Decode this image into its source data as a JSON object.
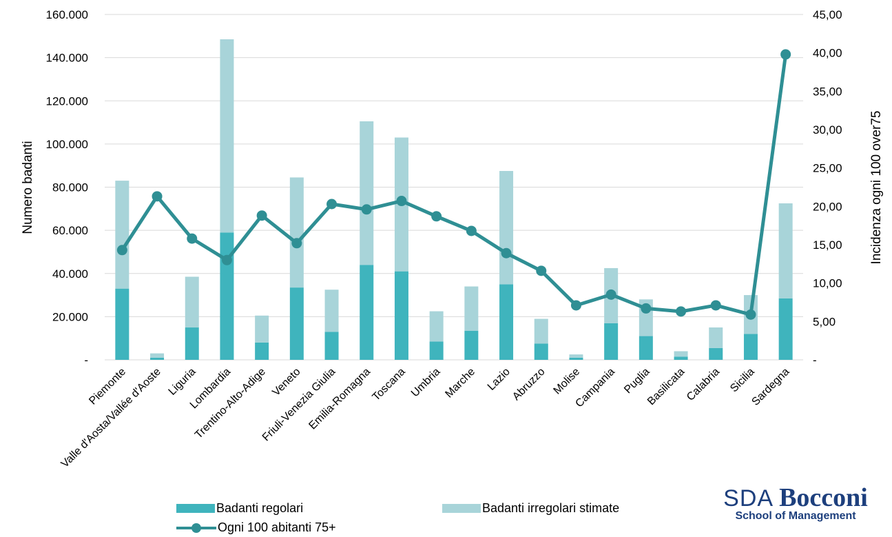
{
  "chart_data": {
    "type": "bar",
    "stacked": true,
    "categories": [
      "Piemonte",
      "Valle d'Aosta/Vallée d'Aoste",
      "Liguria",
      "Lombardia",
      "Trentino-Alto-Adige",
      "Veneto",
      "Friuli-Venezia Giulia",
      "Emilia-Romagna",
      "Toscana",
      "Umbria",
      "Marche",
      "Lazio",
      "Abruzzo",
      "Molise",
      "Campania",
      "Puglia",
      "Basilicata",
      "Calabria",
      "Sicilia",
      "Sardegna"
    ],
    "series": [
      {
        "name": "Badanti regolari",
        "type": "bar",
        "axis": "left",
        "color": "#3fb4bd",
        "values": [
          33000,
          1000,
          15000,
          59000,
          8000,
          33500,
          13000,
          44000,
          41000,
          8500,
          13500,
          35000,
          7500,
          1000,
          17000,
          11000,
          1500,
          5500,
          12000,
          28500
        ]
      },
      {
        "name": "Badanti irregolari stimate",
        "type": "bar",
        "axis": "left",
        "color": "#a8d4d9",
        "values": [
          50000,
          2000,
          23500,
          89500,
          12500,
          51000,
          19500,
          66500,
          62000,
          14000,
          20500,
          52500,
          11500,
          1500,
          25500,
          17000,
          2500,
          9500,
          18000,
          44000
        ]
      },
      {
        "name": "Ogni 100 abitanti 75+",
        "type": "line",
        "axis": "right",
        "color": "#2f8f94",
        "values": [
          14.3,
          21.3,
          15.8,
          13.0,
          18.8,
          15.2,
          20.3,
          19.6,
          20.7,
          18.7,
          16.8,
          13.9,
          11.6,
          7.1,
          8.5,
          6.7,
          6.3,
          7.1,
          5.9,
          39.8
        ]
      }
    ],
    "y_left": {
      "label": "Numero badanti",
      "ylim": [
        0,
        160000
      ],
      "ticks": [
        "-",
        "20.000",
        "40.000",
        "60.000",
        "80.000",
        "100.000",
        "120.000",
        "140.000",
        "160.000"
      ]
    },
    "y_right": {
      "label": "Incidenza ogni 100 over75",
      "ylim": [
        0,
        45
      ],
      "ticks": [
        "-",
        "5,00",
        "10,00",
        "15,00",
        "20,00",
        "25,00",
        "30,00",
        "35,00",
        "40,00",
        "45,00"
      ]
    },
    "grid": true,
    "legend_position": "bottom"
  },
  "logo": {
    "main": "SDA",
    "brand": "Bocconi",
    "sub": "School of Management"
  }
}
